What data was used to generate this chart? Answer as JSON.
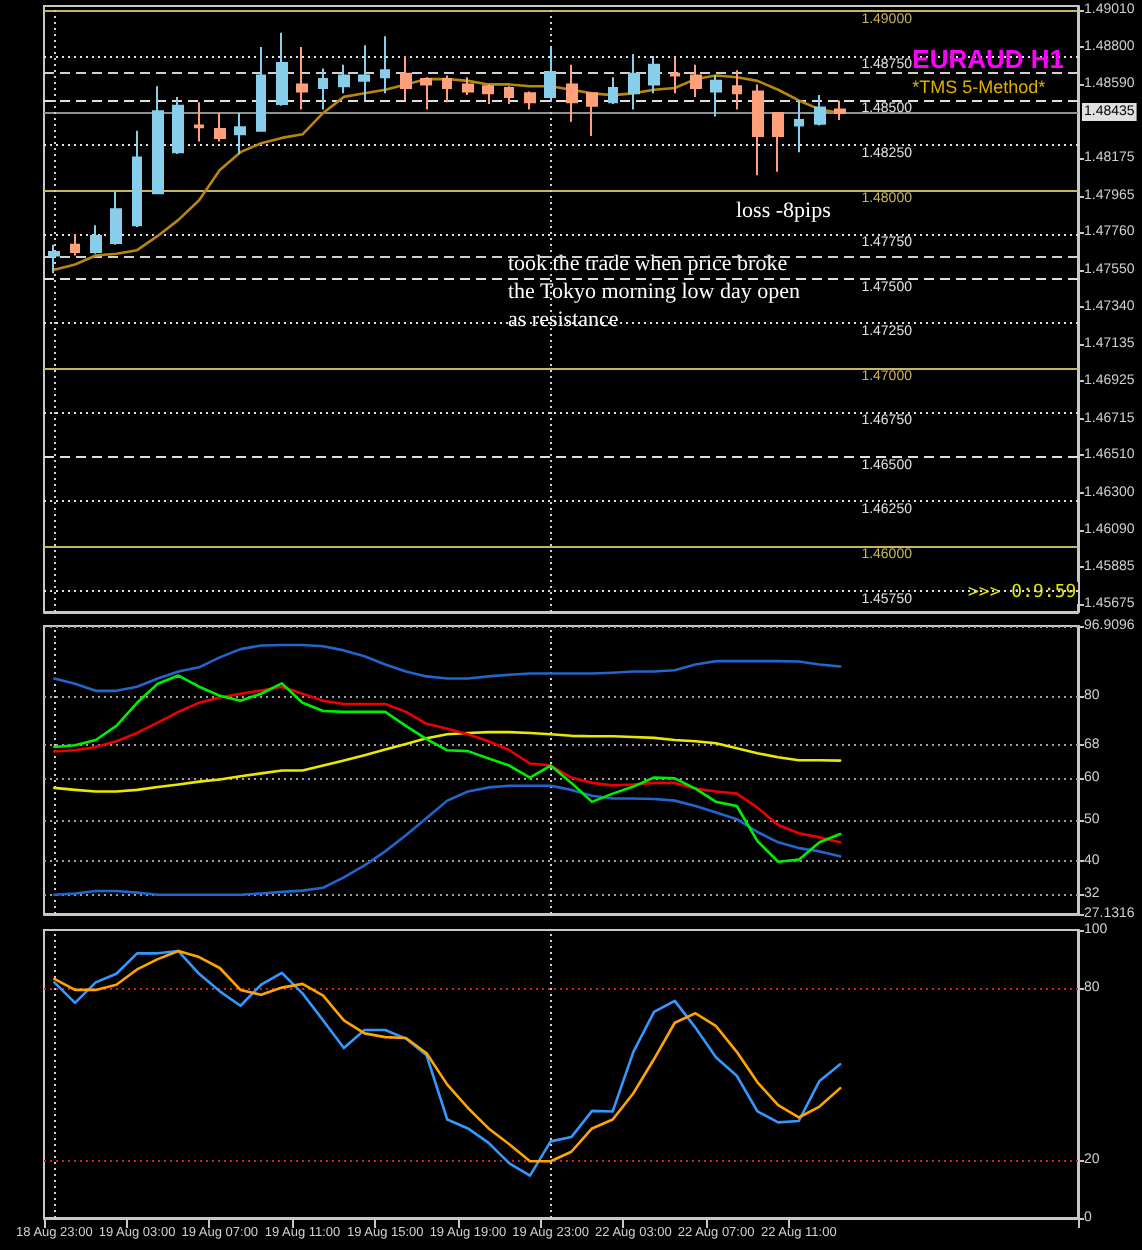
{
  "chart_data": [
    {
      "type": "candlestick",
      "title": "EURAUD H1",
      "subtitle": "*TMS 5-Method*",
      "categories": [
        "18 Aug 23:00",
        null,
        null,
        null,
        "19 Aug 03:00",
        null,
        null,
        null,
        "19 Aug 07:00",
        null,
        null,
        null,
        "19 Aug 11:00",
        null,
        null,
        null,
        "19 Aug 15:00",
        null,
        null,
        null,
        "19 Aug 19:00",
        null,
        null,
        null,
        "19 Aug 23:00",
        null,
        null,
        null,
        "22 Aug 03:00",
        null,
        null,
        null,
        "22 Aug 07:00",
        null,
        null,
        null,
        "22 Aug 11:00",
        null,
        null,
        null,
        null,
        null,
        null,
        null,
        null,
        null,
        null,
        null,
        null,
        null
      ],
      "ohlc": [
        [
          1.4763,
          1.4769,
          1.4753,
          1.4765
        ],
        [
          1.4769,
          1.4775,
          1.4763,
          1.4765
        ],
        [
          1.4765,
          1.478,
          1.4764,
          1.4774
        ],
        [
          1.477,
          1.4799,
          1.4769,
          1.4789
        ],
        [
          1.478,
          1.4833,
          1.4779,
          1.4818
        ],
        [
          1.4798,
          1.4858,
          1.4798,
          1.4844
        ],
        [
          1.4821,
          1.4852,
          1.482,
          1.4847
        ],
        [
          1.4836,
          1.4849,
          1.4827,
          1.4835
        ],
        [
          1.4834,
          1.4843,
          1.4827,
          1.4829
        ],
        [
          1.4831,
          1.4843,
          1.482,
          1.4835
        ],
        [
          1.4833,
          1.488,
          1.4833,
          1.4864
        ],
        [
          1.4848,
          1.4888,
          1.4847,
          1.4871
        ],
        [
          1.4859,
          1.488,
          1.4845,
          1.4855
        ],
        [
          1.4857,
          1.4868,
          1.4845,
          1.4862
        ],
        [
          1.4858,
          1.487,
          1.4854,
          1.4864
        ],
        [
          1.4861,
          1.4881,
          1.485,
          1.4864
        ],
        [
          1.4863,
          1.4886,
          1.4854,
          1.4867
        ],
        [
          1.4865,
          1.4875,
          1.485,
          1.4857
        ],
        [
          1.4862,
          1.4863,
          1.4845,
          1.4859
        ],
        [
          1.4862,
          1.4864,
          1.4849,
          1.4857
        ],
        [
          1.4859,
          1.4863,
          1.4853,
          1.4855
        ],
        [
          1.4858,
          1.4859,
          1.4848,
          1.4854
        ],
        [
          1.4857,
          1.4858,
          1.4848,
          1.4852
        ],
        [
          1.4854,
          1.4855,
          1.4845,
          1.4849
        ],
        [
          1.4852,
          1.488,
          1.485,
          1.4866
        ],
        [
          1.4859,
          1.487,
          1.4838,
          1.4849
        ],
        [
          1.4854,
          1.4854,
          1.483,
          1.4847
        ],
        [
          1.4849,
          1.4863,
          1.4848,
          1.4857
        ],
        [
          1.4854,
          1.4876,
          1.4845,
          1.4865
        ],
        [
          1.4859,
          1.4875,
          1.4854,
          1.487
        ],
        [
          1.4865,
          1.4874,
          1.4854,
          1.4864
        ],
        [
          1.4864,
          1.487,
          1.4852,
          1.4857
        ],
        [
          1.4855,
          1.4864,
          1.4841,
          1.4861
        ],
        [
          1.4858,
          1.4867,
          1.4845,
          1.4854
        ],
        [
          1.4855,
          1.4859,
          1.4808,
          1.483
        ],
        [
          1.4843,
          1.4843,
          1.481,
          1.483
        ],
        [
          1.4836,
          1.485,
          1.4821,
          1.4839
        ],
        [
          1.4837,
          1.4853,
          1.4836,
          1.4846
        ],
        [
          1.4845,
          1.485,
          1.4839,
          1.4843
        ],
        null,
        null,
        null,
        null,
        null,
        null,
        null,
        null,
        null,
        null,
        null
      ],
      "series": [
        {
          "type": "line",
          "color": "#b8860b",
          "values": [
            1.4755,
            1.4758,
            1.4763,
            1.4764,
            1.4766,
            1.4774,
            1.4783,
            1.4794,
            1.4811,
            1.4821,
            1.4826,
            1.4829,
            1.4831,
            1.4843,
            1.4852,
            1.4854,
            1.4856,
            1.4859,
            1.4862,
            1.4862,
            1.4861,
            1.4859,
            1.4859,
            1.4858,
            1.4858,
            1.4856,
            1.4854,
            1.4853,
            1.4854,
            1.4856,
            1.4857,
            1.4862,
            1.4864,
            1.4863,
            1.4861,
            1.4856,
            1.485,
            1.4845,
            1.4843,
            null,
            null,
            null,
            null,
            null,
            null,
            null,
            null,
            null,
            null,
            null
          ]
        }
      ],
      "ylim": [
        1.4563,
        1.4903
      ],
      "yticks": [
        {
          "value": 1.4901,
          "label": "1.49010"
        },
        {
          "value": 1.488,
          "label": "1.48800"
        },
        {
          "value": 1.4859,
          "label": "1.48590"
        },
        {
          "value": 1.48175,
          "label": "1.48175"
        },
        {
          "value": 1.47965,
          "label": "1.47965"
        },
        {
          "value": 1.4776,
          "label": "1.47760"
        },
        {
          "value": 1.4755,
          "label": "1.47550"
        },
        {
          "value": 1.4734,
          "label": "1.47340"
        },
        {
          "value": 1.47135,
          "label": "1.47135"
        },
        {
          "value": 1.46925,
          "label": "1.46925"
        },
        {
          "value": 1.46715,
          "label": "1.46715"
        },
        {
          "value": 1.4651,
          "label": "1.46510"
        },
        {
          "value": 1.463,
          "label": "1.46300"
        },
        {
          "value": 1.4609,
          "label": "1.46090"
        },
        {
          "value": 1.45885,
          "label": "1.45885"
        },
        {
          "value": 1.45675,
          "label": "1.45675"
        }
      ],
      "tick_labels": "y",
      "ref_lines": [
        {
          "axis": "y",
          "value": 1.49,
          "label": "1.49000",
          "color": "#c8b560",
          "line_style": "solid"
        },
        {
          "axis": "y",
          "value": 1.4875,
          "label": "1.48750",
          "color": "#e0e0e0",
          "line_style": "dotted"
        },
        {
          "axis": "y",
          "value": 1.485,
          "label": "1.48500",
          "color": "#e0e0e0",
          "line_style": "dashed"
        },
        {
          "axis": "y",
          "value": 1.4825,
          "label": "1.48250",
          "color": "#e0e0e0",
          "line_style": "dotted"
        },
        {
          "axis": "y",
          "value": 1.48,
          "label": "1.48000",
          "color": "#c8b560",
          "line_style": "solid"
        },
        {
          "axis": "y",
          "value": 1.4775,
          "label": "1.47750",
          "color": "#e0e0e0",
          "line_style": "dotted"
        },
        {
          "axis": "y",
          "value": 1.475,
          "label": "1.47500",
          "color": "#e0e0e0",
          "line_style": "dashed"
        },
        {
          "axis": "y",
          "value": 1.4725,
          "label": "1.47250",
          "color": "#e0e0e0",
          "line_style": "dotted"
        },
        {
          "axis": "y",
          "value": 1.47,
          "label": "1.47000",
          "color": "#c8b560",
          "line_style": "solid"
        },
        {
          "axis": "y",
          "value": 1.4675,
          "label": "1.46750",
          "color": "#e0e0e0",
          "line_style": "dotted"
        },
        {
          "axis": "y",
          "value": 1.465,
          "label": "1.46500",
          "color": "#e0e0e0",
          "line_style": "dashed"
        },
        {
          "axis": "y",
          "value": 1.4625,
          "label": "1.46250",
          "color": "#e0e0e0",
          "line_style": "dotted"
        },
        {
          "axis": "y",
          "value": 1.46,
          "label": "1.46000",
          "color": "#c8b560",
          "line_style": "solid"
        },
        {
          "axis": "y",
          "value": 1.4575,
          "label": "1.45750",
          "color": "#e0e0e0",
          "line_style": "dotted"
        },
        {
          "axis": "y",
          "value": 1.48435,
          "label": "1.48435",
          "color": "#909090",
          "line_style": "solid"
        },
        {
          "axis": "y",
          "value": 1.4866,
          "color": "#d0d0d0",
          "line_style": "dashed"
        },
        {
          "axis": "y",
          "value": 1.4763,
          "color": "#d0d0d0",
          "line_style": "dashed"
        },
        {
          "axis": "x",
          "value": "18 Aug 23:00",
          "color": "#d0d0d0",
          "line_style": "dotted"
        },
        {
          "axis": "x",
          "value": "19 Aug 23:00",
          "color": "#d0d0d0",
          "line_style": "dotted"
        }
      ],
      "annotations": [
        "took the trade when price broke the Tokyo morning low day open as resistance",
        "loss -8pips",
        ">>> 0:9:59"
      ]
    },
    {
      "type": "line",
      "categories": [
        "18 Aug 23:00",
        null,
        null,
        null,
        "19 Aug 03:00",
        null,
        null,
        null,
        "19 Aug 07:00",
        null,
        null,
        null,
        "19 Aug 11:00",
        null,
        null,
        null,
        "19 Aug 15:00",
        null,
        null,
        null,
        "19 Aug 19:00",
        null,
        null,
        null,
        "19 Aug 23:00",
        null,
        null,
        null,
        "22 Aug 03:00",
        null,
        null,
        null,
        "22 Aug 07:00",
        null,
        null,
        null,
        "22 Aug 11:00",
        null,
        null,
        null,
        null,
        null,
        null,
        null,
        null,
        null,
        null,
        null,
        null,
        null
      ],
      "series": [
        {
          "color": "#2266cc",
          "values": [
            84.2,
            82.9,
            81.2,
            81.2,
            82.2,
            84.2,
            85.9,
            86.9,
            89.3,
            91.3,
            92.2,
            92.3,
            92.3,
            92.0,
            91.0,
            89.6,
            87.6,
            85.9,
            84.7,
            84.2,
            84.2,
            84.7,
            85.1,
            85.4,
            85.4,
            85.4,
            85.4,
            85.6,
            85.9,
            85.9,
            86.2,
            87.6,
            88.4,
            88.4,
            88.4,
            88.4,
            88.3,
            87.6,
            87.1,
            null,
            null,
            null,
            null,
            null,
            null,
            null,
            null,
            null,
            null,
            null
          ]
        },
        {
          "color": "#2266cc",
          "values": [
            31.8,
            32.1,
            32.7,
            32.7,
            32.3,
            31.8,
            31.8,
            31.8,
            31.8,
            31.8,
            32.1,
            32.5,
            32.8,
            33.5,
            36.0,
            38.9,
            42.3,
            46.2,
            50.4,
            54.6,
            56.8,
            57.8,
            58.2,
            58.2,
            58.2,
            57.2,
            55.8,
            55.1,
            55.1,
            55.0,
            54.6,
            53.3,
            51.7,
            50.1,
            47.0,
            44.5,
            43.1,
            42.3,
            41.1,
            null,
            null,
            null,
            null,
            null,
            null,
            null,
            null,
            null,
            null,
            null
          ]
        },
        {
          "color": "#e8e800",
          "values": [
            57.7,
            57.2,
            56.8,
            56.8,
            57.2,
            57.9,
            58.5,
            59.2,
            59.7,
            60.5,
            61.2,
            61.9,
            61.9,
            63.1,
            64.3,
            65.6,
            67.0,
            68.3,
            69.7,
            70.7,
            71.0,
            71.2,
            71.2,
            71.0,
            70.7,
            70.3,
            70.2,
            70.2,
            70.0,
            69.8,
            69.3,
            69.0,
            68.5,
            67.3,
            66.1,
            65.1,
            64.4,
            64.4,
            64.3,
            null,
            null,
            null,
            null,
            null,
            null,
            null,
            null,
            null,
            null,
            null
          ]
        },
        {
          "color": "#ee0000",
          "values": [
            66.5,
            66.8,
            67.6,
            69.0,
            71.0,
            73.5,
            76.1,
            78.3,
            79.6,
            80.5,
            81.3,
            82.2,
            80.5,
            78.8,
            78.0,
            78.0,
            78.0,
            76.1,
            73.2,
            72.0,
            70.7,
            69.0,
            66.8,
            63.6,
            63.1,
            60.2,
            58.9,
            58.3,
            58.5,
            58.9,
            58.9,
            57.5,
            56.8,
            56.3,
            52.9,
            48.7,
            46.7,
            45.7,
            44.5,
            null,
            null,
            null,
            null,
            null,
            null,
            null,
            null,
            null,
            null,
            null
          ]
        },
        {
          "color": "#00ee00",
          "values": [
            67.6,
            68.0,
            69.3,
            72.7,
            78.3,
            82.9,
            84.9,
            82.2,
            80.0,
            78.8,
            80.5,
            83.0,
            78.3,
            76.3,
            76.1,
            76.1,
            76.1,
            72.7,
            69.5,
            66.8,
            66.6,
            64.8,
            63.1,
            60.2,
            63.1,
            58.9,
            54.3,
            56.3,
            58.0,
            60.2,
            60.0,
            57.5,
            54.3,
            53.3,
            44.8,
            39.8,
            40.3,
            44.5,
            46.5,
            null,
            null,
            null,
            null,
            null,
            null,
            null,
            null,
            null,
            null,
            null
          ]
        }
      ],
      "ylim": [
        27.1316,
        96.9096
      ],
      "yticks": [
        27.1316,
        32,
        40,
        50,
        60,
        68,
        80,
        96.9096
      ],
      "grid": "y",
      "tick_labels": "y",
      "ref_lines": [
        {
          "axis": "x",
          "value": "18 Aug 23:00",
          "color": "#d0d0d0",
          "line_style": "dotted"
        },
        {
          "axis": "x",
          "value": "19 Aug 23:00",
          "color": "#d0d0d0",
          "line_style": "dotted"
        }
      ]
    },
    {
      "type": "line",
      "categories": [
        "18 Aug 23:00",
        null,
        null,
        null,
        "19 Aug 03:00",
        null,
        null,
        null,
        "19 Aug 07:00",
        null,
        null,
        null,
        "19 Aug 11:00",
        null,
        null,
        null,
        "19 Aug 15:00",
        null,
        null,
        null,
        "19 Aug 19:00",
        null,
        null,
        null,
        "19 Aug 23:00",
        null,
        null,
        null,
        "22 Aug 03:00",
        null,
        null,
        null,
        "22 Aug 07:00",
        null,
        null,
        null,
        "22 Aug 11:00",
        null,
        null,
        null,
        null,
        null,
        null,
        null,
        null,
        null,
        null,
        null,
        null,
        null
      ],
      "series": [
        {
          "color": "#3399ff",
          "values": [
            81.8,
            74.7,
            81.8,
            84.8,
            91.9,
            91.9,
            92.7,
            84.8,
            78.7,
            73.7,
            81.0,
            85.1,
            78.0,
            68.6,
            59.0,
            65.3,
            65.3,
            62.3,
            56.5,
            34.2,
            31.1,
            26.1,
            19.0,
            14.7,
            26.6,
            28.1,
            37.2,
            37.0,
            57.7,
            71.6,
            75.4,
            66.1,
            55.7,
            49.4,
            37.0,
            33.2,
            33.7,
            47.6,
            53.4,
            null,
            null,
            null,
            null,
            null,
            null,
            null,
            null,
            null,
            null,
            null
          ]
        },
        {
          "color": "#ffa500",
          "values": [
            83.0,
            79.2,
            79.2,
            81.0,
            86.3,
            89.9,
            92.7,
            90.6,
            86.8,
            79.2,
            77.5,
            80.0,
            81.3,
            77.2,
            68.6,
            64.1,
            62.8,
            62.5,
            57.2,
            46.3,
            38.2,
            31.1,
            25.6,
            19.7,
            19.7,
            23.0,
            31.1,
            34.2,
            43.3,
            55.2,
            67.8,
            71.1,
            66.6,
            57.7,
            47.1,
            39.2,
            34.9,
            38.7,
            45.1,
            null,
            null,
            null,
            null,
            null,
            null,
            null,
            null,
            null,
            null,
            null
          ]
        }
      ],
      "ylim": [
        0,
        100
      ],
      "yticks": [
        0,
        20,
        80,
        100
      ],
      "ref_lines": [
        {
          "axis": "y",
          "value": 20,
          "color": "#cc2222",
          "line_style": "dotted"
        },
        {
          "axis": "y",
          "value": 80,
          "color": "#cc2222",
          "line_style": "dotted"
        },
        {
          "axis": "x",
          "value": "18 Aug 23:00",
          "color": "#d0d0d0",
          "line_style": "dotted"
        },
        {
          "axis": "x",
          "value": "19 Aug 23:00",
          "color": "#d0d0d0",
          "line_style": "dotted"
        }
      ]
    }
  ]
}
